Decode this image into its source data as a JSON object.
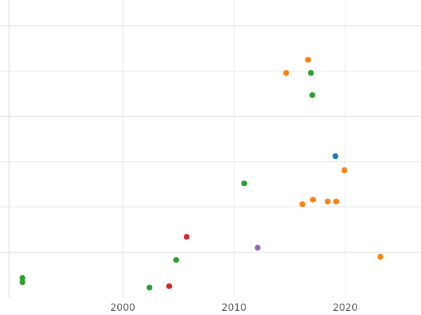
{
  "chart_data": {
    "type": "scatter",
    "series": [
      {
        "color": "#2ca02c",
        "x": [
          1990.98,
          1990.98,
          2002.4,
          2004.8,
          2010.92,
          2016.91,
          2017.04
        ],
        "values": [
          0.43,
          0.34,
          0.22,
          0.83,
          2.52,
          4.96,
          4.47
        ]
      },
      {
        "color": "#ff7f0e",
        "x": [
          2014.69,
          2016.65,
          2019.92,
          2016.15,
          2017.1,
          2018.42,
          2019.18,
          2023.16
        ],
        "values": [
          4.96,
          5.25,
          2.81,
          2.06,
          2.16,
          2.12,
          2.12,
          0.9
        ]
      },
      {
        "color": "#1f77b4",
        "x": [
          2019.12
        ],
        "values": [
          3.12
        ]
      },
      {
        "color": "#d62728",
        "x": [
          2005.74,
          2004.17
        ],
        "values": [
          1.34,
          0.25
        ]
      },
      {
        "color": "#9467bd",
        "x": [
          2012.12
        ],
        "values": [
          1.1
        ]
      }
    ],
    "xlim": [
      1988.96,
      2026.81
    ],
    "xticks": [
      2000,
      2010,
      2020
    ],
    "ylim": [
      0,
      6.57
    ],
    "yticks": [
      1,
      2,
      3,
      4,
      5,
      6
    ],
    "grid": true
  }
}
